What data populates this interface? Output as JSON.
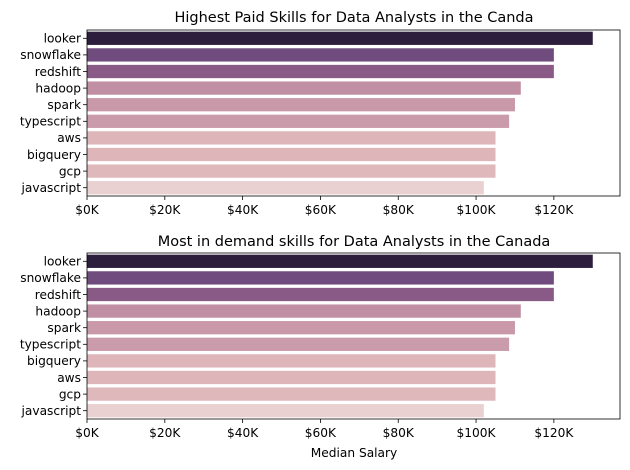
{
  "chart_data": [
    {
      "type": "bar",
      "orientation": "horizontal",
      "title": "Highest Paid Skills for Data Analysts in the Canda",
      "xlabel": "",
      "ylabel": "",
      "categories": [
        "looker",
        "snowflake",
        "redshift",
        "hadoop",
        "spark",
        "typescript",
        "aws",
        "bigquery",
        "gcp",
        "javascript"
      ],
      "values": [
        130000,
        120000,
        120000,
        111500,
        110000,
        108500,
        105000,
        105000,
        105000,
        102000
      ],
      "colors": [
        "#2d1e3e",
        "#6f4b7e",
        "#8a5a87",
        "#c18fa3",
        "#c998a9",
        "#ca9bab",
        "#deb5b9",
        "#deb6ba",
        "#dfb8bc",
        "#ead1d1"
      ],
      "xlim": [
        0,
        137000
      ],
      "xticks": [
        0,
        20000,
        40000,
        60000,
        80000,
        100000,
        120000
      ],
      "xtick_labels": [
        "$0K",
        "$20K",
        "$40K",
        "$60K",
        "$80K",
        "$100K",
        "$120K"
      ],
      "grid": false
    },
    {
      "type": "bar",
      "orientation": "horizontal",
      "title": "Most in demand skills for Data Analysts in the Canada",
      "xlabel": "Median Salary",
      "ylabel": "",
      "categories": [
        "looker",
        "snowflake",
        "redshift",
        "hadoop",
        "spark",
        "typescript",
        "bigquery",
        "aws",
        "gcp",
        "javascript"
      ],
      "values": [
        130000,
        120000,
        120000,
        111500,
        110000,
        108500,
        105000,
        105000,
        105000,
        102000
      ],
      "colors": [
        "#2d1e3e",
        "#6f4b7e",
        "#8a5a87",
        "#c18fa3",
        "#c998a9",
        "#ca9bab",
        "#deb5b9",
        "#deb6ba",
        "#dfb8bc",
        "#ead1d1"
      ],
      "xlim": [
        0,
        137000
      ],
      "xticks": [
        0,
        20000,
        40000,
        60000,
        80000,
        100000,
        120000
      ],
      "xtick_labels": [
        "$0K",
        "$20K",
        "$40K",
        "$60K",
        "$80K",
        "$100K",
        "$120K"
      ],
      "grid": false
    }
  ]
}
